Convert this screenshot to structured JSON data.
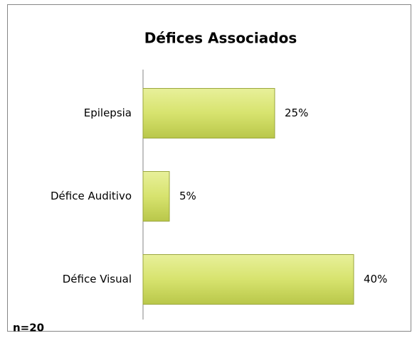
{
  "chart_data": {
    "type": "bar",
    "orientation": "horizontal",
    "title": "Défices Associados",
    "categories": [
      "Epilepsia",
      "Défice Auditivo",
      "Défice Visual"
    ],
    "values": [
      25,
      5,
      40
    ],
    "value_labels": [
      "25%",
      "5%",
      "40%"
    ],
    "color": "#d7e36e",
    "annotation": "n=20"
  }
}
